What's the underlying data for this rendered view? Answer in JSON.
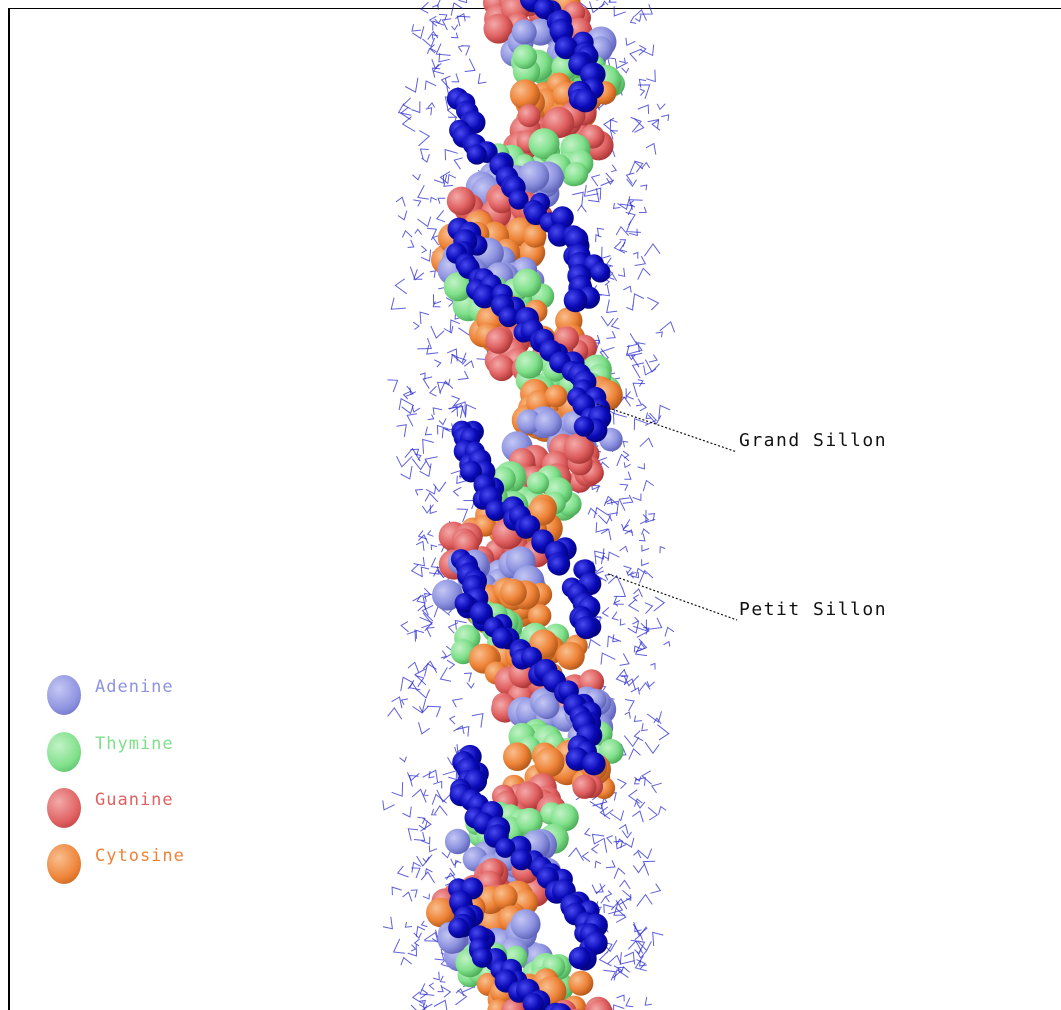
{
  "annotations": {
    "major_groove": "Grand Sillon",
    "minor_groove": "Petit Sillon"
  },
  "legend": [
    {
      "label": "Adenine",
      "color": "#8e93e0"
    },
    {
      "label": "Thymine",
      "color": "#7fe08a"
    },
    {
      "label": "Guanine",
      "color": "#e06060"
    },
    {
      "label": "Cytosine",
      "color": "#ee8236"
    }
  ],
  "backbone_color": "#0a0ab8",
  "water_color": "#2a2ad0"
}
